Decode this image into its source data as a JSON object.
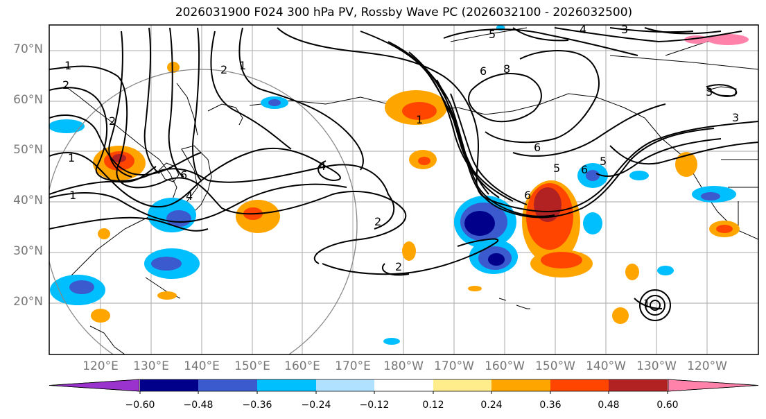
{
  "title": "2026031900 F024 300 hPa PV, Rossby Wave PC (2026032100 - 2026032500)",
  "lat_labels": [
    "70°N",
    "60°N",
    "50°N",
    "40°N",
    "30°N",
    "20°N"
  ],
  "lon_labels": [
    "120°E",
    "130°E",
    "140°E",
    "150°E",
    "160°E",
    "170°E",
    "180°W",
    "170°W",
    "160°W",
    "150°W",
    "140°W",
    "130°W",
    "120°W"
  ],
  "colorbar": {
    "colors": [
      "#9a32cd",
      "#00008b",
      "#3a5acd",
      "#00bfff",
      "#b0e2ff",
      "#ffffff",
      "#ffec8b",
      "#ffa500",
      "#ff4500",
      "#b22222",
      "#ff82ab"
    ],
    "ticks": [
      "−0.60",
      "−0.48",
      "−0.36",
      "−0.24",
      "−0.12",
      "0.12",
      "0.24",
      "0.36",
      "0.48",
      "0.60"
    ]
  },
  "contour_labels": [
    "1",
    "2",
    "1",
    "2",
    "1",
    "2",
    "1",
    "6",
    "4",
    "4",
    "2",
    "2",
    "1",
    "5",
    "6",
    "8",
    "6",
    "5",
    "6",
    "5",
    "4",
    "3",
    "3",
    "1",
    "6",
    "3"
  ]
}
